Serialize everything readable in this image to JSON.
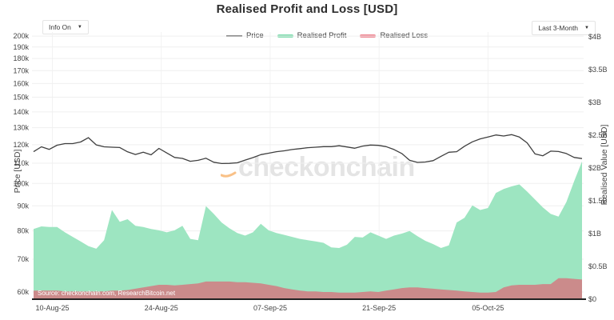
{
  "header": {
    "title": "Realised Profit and Loss [USD]"
  },
  "controls": {
    "info_dropdown_label": "Info On",
    "range_dropdown_label": "Last 3-Month",
    "caret": "▼"
  },
  "watermark": {
    "text": "checkonchain"
  },
  "source": {
    "text": "Source: checkonchain.com, ResearchBitcoin.net"
  },
  "colors": {
    "profit_fill": "#9de5c1",
    "loss_fill": "#cb8b8b",
    "price_line": "#3f3f3f",
    "legend_profit": "#7fdcae",
    "legend_loss": "#ef8590",
    "accent_orange": "#f8b26a",
    "grid": "#efefef",
    "axis_line": "#222222"
  },
  "chart_data": {
    "type": "area",
    "title": "Realised Profit and Loss [USD]",
    "x_unit": "days (daily samples, left edge ≈ 07-Aug-25 to right edge ≈ 17-Oct-25)",
    "x_ticks": [
      {
        "pos": 2.4,
        "label": "10-Aug-25"
      },
      {
        "pos": 16.3,
        "label": "24-Aug-25"
      },
      {
        "pos": 30.2,
        "label": "07-Sep-25"
      },
      {
        "pos": 44.1,
        "label": "21-Sep-25"
      },
      {
        "pos": 58.0,
        "label": "05-Oct-25"
      }
    ],
    "axes": {
      "left": {
        "title": "Price [USD]",
        "scale": "log",
        "range": [
          58000,
          203900
        ],
        "ticks": [
          {
            "v": 60000,
            "label": "60k"
          },
          {
            "v": 70000,
            "label": "70k"
          },
          {
            "v": 80000,
            "label": "80k"
          },
          {
            "v": 90000,
            "label": "90k"
          },
          {
            "v": 100000,
            "label": "100k"
          },
          {
            "v": 110000,
            "label": "110k"
          },
          {
            "v": 120000,
            "label": "120k"
          },
          {
            "v": 130000,
            "label": "130k"
          },
          {
            "v": 140000,
            "label": "140k"
          },
          {
            "v": 150000,
            "label": "150k"
          },
          {
            "v": 160000,
            "label": "160k"
          },
          {
            "v": 170000,
            "label": "170k"
          },
          {
            "v": 180000,
            "label": "180k"
          },
          {
            "v": 190000,
            "label": "190k"
          },
          {
            "v": 200000,
            "label": "200k"
          }
        ]
      },
      "right": {
        "title": "Realised Value [USD]",
        "scale": "linear",
        "range": [
          0,
          4.073
        ],
        "ticks": [
          {
            "v": 0,
            "label": "$0"
          },
          {
            "v": 0.5,
            "label": "$0.5B"
          },
          {
            "v": 1,
            "label": "$1B"
          },
          {
            "v": 1.5,
            "label": "$1.5B"
          },
          {
            "v": 2,
            "label": "$2B"
          },
          {
            "v": 2.5,
            "label": "$2.5B"
          },
          {
            "v": 3,
            "label": "$3B"
          },
          {
            "v": 3.5,
            "label": "$3.5B"
          },
          {
            "v": 4,
            "label": "$4B"
          }
        ]
      }
    },
    "series": [
      {
        "name": "Price",
        "type": "line",
        "axis": "left",
        "color": "#3f3f3f",
        "legend_color": "#555555",
        "values": [
          116100,
          118800,
          117400,
          119700,
          120600,
          120600,
          121500,
          124000,
          119900,
          118800,
          118600,
          118400,
          116000,
          114600,
          115800,
          114400,
          117900,
          115400,
          113000,
          112500,
          111000,
          111500,
          112600,
          110500,
          109800,
          109900,
          110200,
          111600,
          112900,
          114500,
          115300,
          116100,
          116600,
          117300,
          117800,
          118300,
          118600,
          118900,
          118900,
          119400,
          118700,
          118000,
          119200,
          119800,
          119600,
          118900,
          117300,
          115100,
          111500,
          110400,
          110600,
          111300,
          113600,
          115800,
          116100,
          119100,
          121600,
          123300,
          124400,
          125600,
          125000,
          125800,
          124400,
          121000,
          114900,
          113900,
          116400,
          116200,
          115100,
          113000,
          112400
        ]
      },
      {
        "name": "Realised Profit",
        "type": "area",
        "axis": "right",
        "color": "#9de5c1",
        "legend_color": "#7fdcae",
        "values": [
          1.07,
          1.11,
          1.1,
          1.1,
          1.02,
          0.95,
          0.88,
          0.81,
          0.77,
          0.9,
          1.36,
          1.18,
          1.22,
          1.12,
          1.1,
          1.07,
          1.05,
          1.02,
          1.05,
          1.12,
          0.92,
          0.9,
          1.42,
          1.3,
          1.17,
          1.08,
          1.01,
          0.97,
          1.02,
          1.15,
          1.05,
          1.01,
          0.98,
          0.95,
          0.92,
          0.9,
          0.88,
          0.86,
          0.79,
          0.78,
          0.83,
          0.95,
          0.94,
          1.02,
          0.97,
          0.92,
          0.97,
          1.0,
          1.04,
          0.96,
          0.89,
          0.84,
          0.78,
          0.82,
          1.17,
          1.24,
          1.43,
          1.36,
          1.39,
          1.62,
          1.68,
          1.72,
          1.75,
          1.64,
          1.52,
          1.4,
          1.3,
          1.26,
          1.48,
          1.8,
          2.1
        ]
      },
      {
        "name": "Realised Loss",
        "type": "area",
        "axis": "right",
        "color": "#cb8b8b",
        "legend_color": "#ef8590",
        "values": [
          0.13,
          0.13,
          0.13,
          0.13,
          0.12,
          0.12,
          0.12,
          0.12,
          0.12,
          0.12,
          0.13,
          0.13,
          0.14,
          0.16,
          0.18,
          0.2,
          0.22,
          0.22,
          0.21,
          0.22,
          0.23,
          0.24,
          0.27,
          0.27,
          0.27,
          0.27,
          0.26,
          0.26,
          0.25,
          0.24,
          0.22,
          0.2,
          0.17,
          0.15,
          0.13,
          0.12,
          0.12,
          0.11,
          0.11,
          0.1,
          0.1,
          0.1,
          0.11,
          0.12,
          0.11,
          0.13,
          0.15,
          0.17,
          0.18,
          0.18,
          0.17,
          0.16,
          0.15,
          0.14,
          0.13,
          0.12,
          0.11,
          0.1,
          0.1,
          0.11,
          0.18,
          0.21,
          0.22,
          0.22,
          0.22,
          0.23,
          0.23,
          0.32,
          0.32,
          0.31,
          0.3
        ]
      }
    ],
    "legend_position": "top-center",
    "grid": "on"
  }
}
